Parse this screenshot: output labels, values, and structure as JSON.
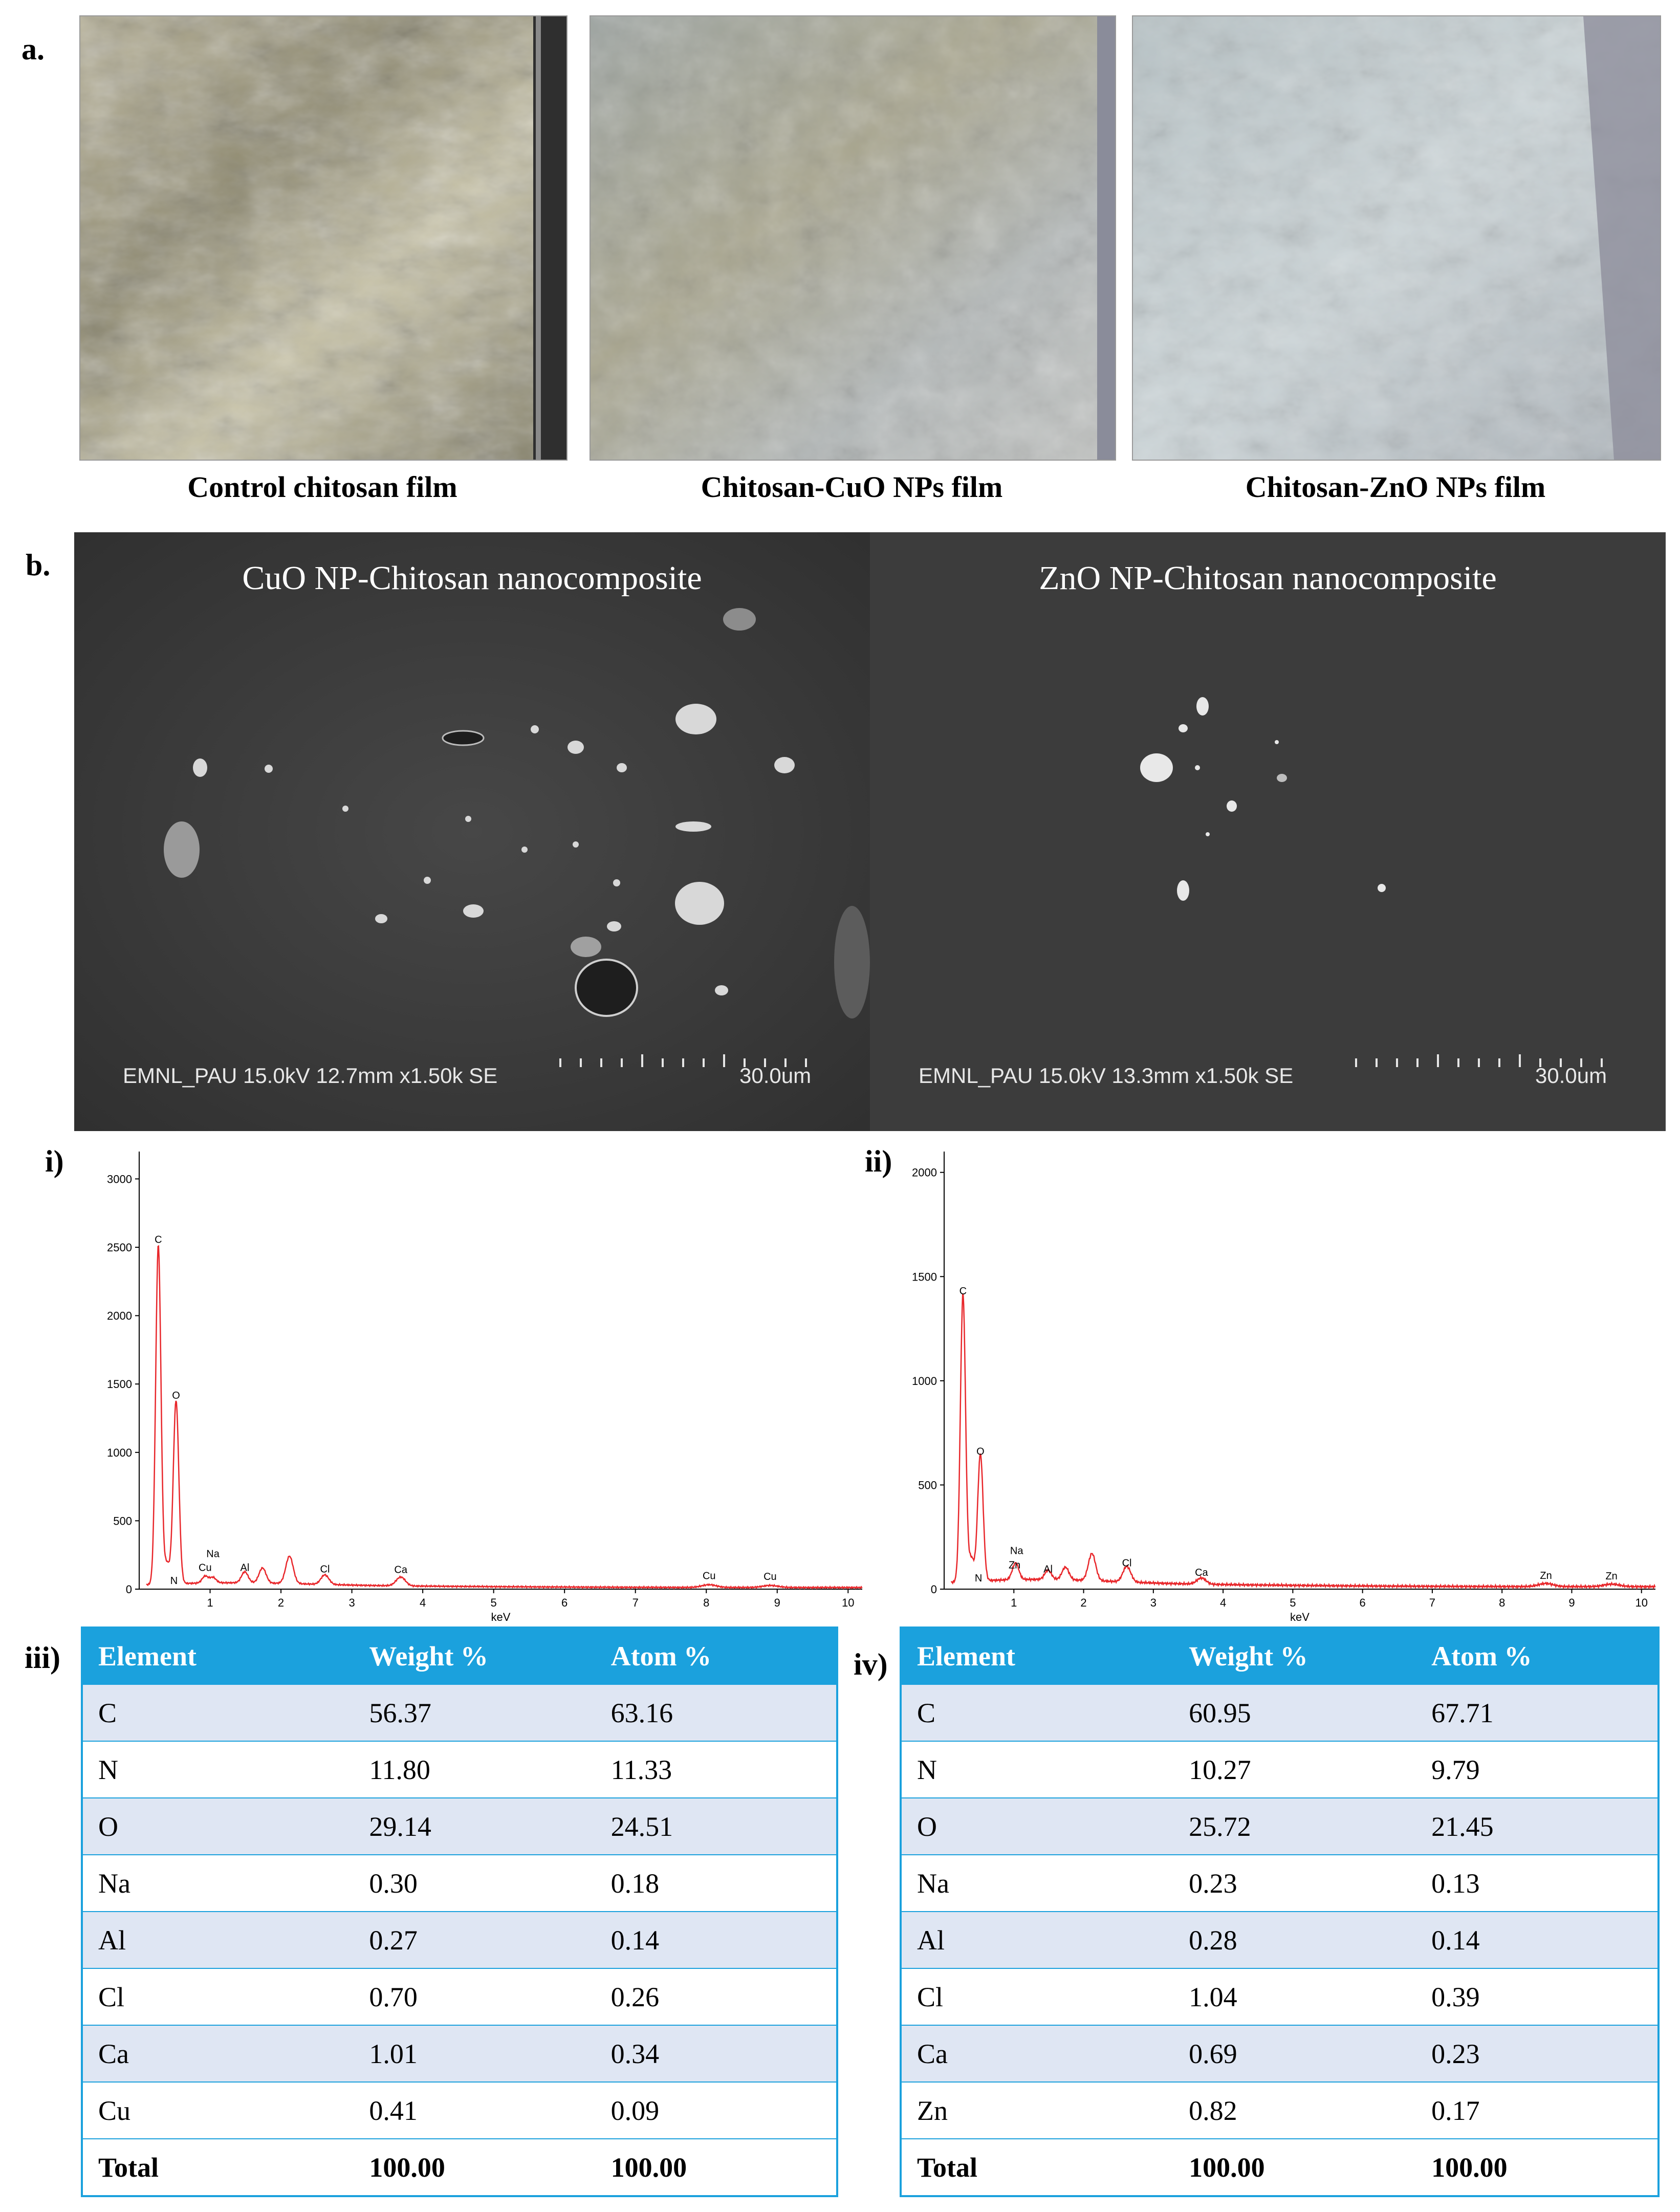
{
  "panel_a": {
    "letter": "a.",
    "films": [
      {
        "caption": "Control chitosan film",
        "image": "control-chitosan-film-photo"
      },
      {
        "caption": "Chitosan-CuO NPs film",
        "image": "chitosan-cuo-film-photo"
      },
      {
        "caption": "Chitosan-ZnO NPs film",
        "image": "chitosan-zno-film-photo"
      }
    ]
  },
  "panel_b": {
    "letter": "b.",
    "sem": [
      {
        "title": "CuO NP-Chitosan nanocomposite",
        "info": "EMNL_PAU 15.0kV 12.7mm x1.50k SE",
        "scale": "30.0um"
      },
      {
        "title": "ZnO NP-Chitosan nanocomposite",
        "info": "EMNL_PAU 15.0kV 13.3mm x1.50k SE",
        "scale": "30.0um"
      }
    ]
  },
  "chart_data": [
    {
      "type": "line",
      "panel_label": "i)",
      "xlabel": "keV",
      "xlim": [
        0,
        10.2
      ],
      "ylim": [
        0,
        3200
      ],
      "x_ticks": [
        1,
        2,
        3,
        4,
        5,
        6,
        7,
        8,
        9,
        10
      ],
      "y_ticks": [
        0,
        500,
        1000,
        1500,
        2000,
        2500,
        3000
      ],
      "peaks": [
        {
          "label": "C",
          "x": 0.27,
          "y": 2480
        },
        {
          "label": "N",
          "x": 0.39,
          "y": 150
        },
        {
          "label": "O",
          "x": 0.52,
          "y": 1340
        },
        {
          "label": "Na",
          "x": 1.04,
          "y": 40
        },
        {
          "label": "Cu",
          "x": 0.93,
          "y": 50
        },
        {
          "label": "Al",
          "x": 1.49,
          "y": 80
        },
        {
          "label": "",
          "x": 1.74,
          "y": 110
        },
        {
          "label": "",
          "x": 2.12,
          "y": 200
        },
        {
          "label": "Cl",
          "x": 2.62,
          "y": 70
        },
        {
          "label": "Ca",
          "x": 3.69,
          "y": 65
        },
        {
          "label": "Cu",
          "x": 8.04,
          "y": 20
        },
        {
          "label": "Cu",
          "x": 8.9,
          "y": 15
        }
      ]
    },
    {
      "type": "line",
      "panel_label": "ii)",
      "xlabel": "keV",
      "xlim": [
        0,
        10.2
      ],
      "ylim": [
        0,
        2100
      ],
      "x_ticks": [
        1,
        2,
        3,
        4,
        5,
        6,
        7,
        8,
        9,
        10
      ],
      "y_ticks": [
        0,
        500,
        1000,
        1500,
        2000
      ],
      "peaks": [
        {
          "label": "C",
          "x": 0.27,
          "y": 1380
        },
        {
          "label": "N",
          "x": 0.39,
          "y": 110
        },
        {
          "label": "O",
          "x": 0.52,
          "y": 610
        },
        {
          "label": "Na",
          "x": 1.04,
          "y": 40
        },
        {
          "label": "Zn",
          "x": 1.01,
          "y": 45
        },
        {
          "label": "Al",
          "x": 1.49,
          "y": 45
        },
        {
          "label": "",
          "x": 1.74,
          "y": 60
        },
        {
          "label": "",
          "x": 2.12,
          "y": 130
        },
        {
          "label": "Cl",
          "x": 2.62,
          "y": 75
        },
        {
          "label": "Ca",
          "x": 3.69,
          "y": 30
        },
        {
          "label": "Zn",
          "x": 8.63,
          "y": 15
        },
        {
          "label": "Zn",
          "x": 9.57,
          "y": 12
        }
      ]
    },
    {
      "type": "table",
      "panel_label": "iii)",
      "headers": [
        "Element",
        "Weight %",
        "Atom %"
      ],
      "rows": [
        [
          "C",
          "56.37",
          "63.16"
        ],
        [
          "N",
          "11.80",
          "11.33"
        ],
        [
          "O",
          "29.14",
          "24.51"
        ],
        [
          "Na",
          "0.30",
          "0.18"
        ],
        [
          "Al",
          "0.27",
          "0.14"
        ],
        [
          "Cl",
          "0.70",
          "0.26"
        ],
        [
          "Ca",
          "1.01",
          "0.34"
        ],
        [
          "Cu",
          "0.41",
          "0.09"
        ],
        [
          "Total",
          "100.00",
          "100.00"
        ]
      ]
    },
    {
      "type": "table",
      "panel_label": "iv)",
      "headers": [
        "Element",
        "Weight %",
        "Atom %"
      ],
      "rows": [
        [
          "C",
          "60.95",
          "67.71"
        ],
        [
          "N",
          "10.27",
          "9.79"
        ],
        [
          "O",
          "25.72",
          "21.45"
        ],
        [
          "Na",
          "0.23",
          "0.13"
        ],
        [
          "Al",
          "0.28",
          "0.14"
        ],
        [
          "Cl",
          "1.04",
          "0.39"
        ],
        [
          "Ca",
          "0.69",
          "0.23"
        ],
        [
          "Zn",
          "0.82",
          "0.17"
        ],
        [
          "Total",
          "100.00",
          "100.00"
        ]
      ]
    }
  ]
}
